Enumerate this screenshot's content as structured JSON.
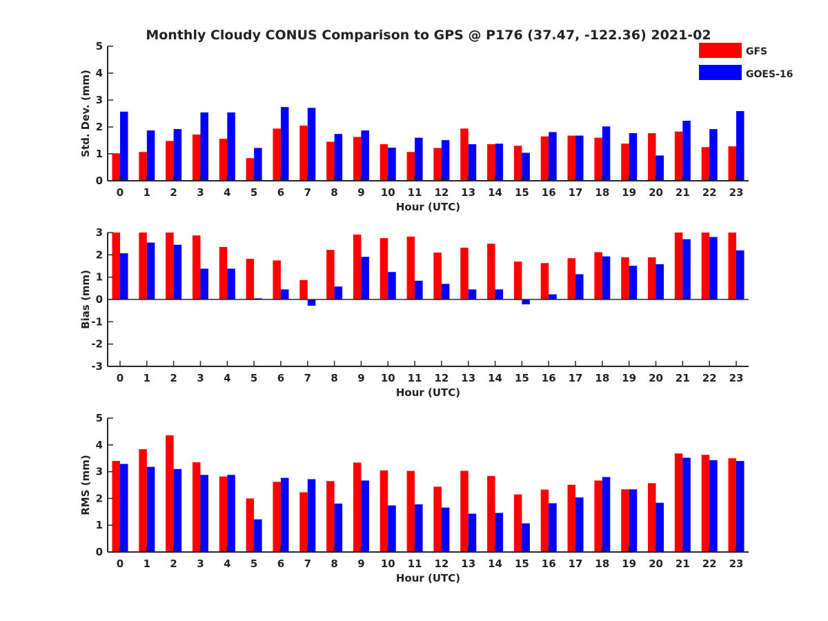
{
  "title": "Monthly Cloudy CONUS Comparison to GPS @ P176 (37.47, -122.36) 2021-02",
  "legend": {
    "placement": "top-right",
    "items": [
      {
        "name": "GFS",
        "color": "#ff0000"
      },
      {
        "name": "GOES-16",
        "color": "#0000ff"
      }
    ]
  },
  "chart_data": [
    {
      "type": "bar",
      "xlabel": "Hour (UTC)",
      "ylabel": "Std. Dev. (mm)",
      "ylim": [
        0,
        5
      ],
      "yticks": [
        0,
        1,
        2,
        3,
        4,
        5
      ],
      "categories": [
        "0",
        "1",
        "2",
        "3",
        "4",
        "5",
        "6",
        "7",
        "8",
        "9",
        "10",
        "11",
        "12",
        "13",
        "14",
        "15",
        "16",
        "17",
        "18",
        "19",
        "20",
        "21",
        "22",
        "23"
      ],
      "series": [
        {
          "name": "GFS",
          "color": "#ff0000",
          "values": [
            1.02,
            1.07,
            1.48,
            1.72,
            1.56,
            0.84,
            1.94,
            2.05,
            1.45,
            1.63,
            1.36,
            1.07,
            1.22,
            1.94,
            1.36,
            1.3,
            1.65,
            1.68,
            1.6,
            1.38,
            1.77,
            1.83,
            1.25,
            1.28
          ]
        },
        {
          "name": "GOES-16",
          "color": "#0000ff",
          "values": [
            2.57,
            1.87,
            1.92,
            2.54,
            2.54,
            1.22,
            2.74,
            2.71,
            1.74,
            1.87,
            1.23,
            1.6,
            1.51,
            1.36,
            1.38,
            1.04,
            1.81,
            1.68,
            2.02,
            1.77,
            0.94,
            2.23,
            1.92,
            2.59
          ]
        }
      ]
    },
    {
      "type": "bar",
      "xlabel": "Hour (UTC)",
      "ylabel": "Bias (mm)",
      "ylim": [
        -3,
        3
      ],
      "yticks": [
        -3,
        -2,
        -1,
        0,
        1,
        2,
        3
      ],
      "categories": [
        "0",
        "1",
        "2",
        "3",
        "4",
        "5",
        "6",
        "7",
        "8",
        "9",
        "10",
        "11",
        "12",
        "13",
        "14",
        "15",
        "16",
        "17",
        "18",
        "19",
        "20",
        "21",
        "22",
        "23"
      ],
      "series": [
        {
          "name": "GFS",
          "color": "#ff0000",
          "values": [
            3.0,
            3.0,
            3.0,
            2.87,
            2.35,
            1.82,
            1.75,
            0.87,
            2.22,
            2.91,
            2.75,
            2.82,
            2.1,
            2.32,
            2.5,
            1.7,
            1.63,
            1.85,
            2.12,
            1.89,
            1.89,
            3.0,
            3.0,
            3.0
          ]
        },
        {
          "name": "GOES-16",
          "color": "#0000ff",
          "values": [
            2.07,
            2.55,
            2.45,
            1.38,
            1.38,
            0.05,
            0.45,
            -0.28,
            0.58,
            1.91,
            1.23,
            0.84,
            0.7,
            0.45,
            0.45,
            -0.22,
            0.23,
            1.13,
            1.93,
            1.51,
            1.58,
            2.7,
            2.8,
            2.2
          ]
        }
      ]
    },
    {
      "type": "bar",
      "xlabel": "Hour (UTC)",
      "ylabel": "RMS (mm)",
      "ylim": [
        0,
        5
      ],
      "yticks": [
        0,
        1,
        2,
        3,
        4,
        5
      ],
      "categories": [
        "0",
        "1",
        "2",
        "3",
        "4",
        "5",
        "6",
        "7",
        "8",
        "9",
        "10",
        "11",
        "12",
        "13",
        "14",
        "15",
        "16",
        "17",
        "18",
        "19",
        "20",
        "21",
        "22",
        "23"
      ],
      "series": [
        {
          "name": "GFS",
          "color": "#ff0000",
          "values": [
            3.4,
            3.84,
            4.36,
            3.35,
            2.82,
            2.0,
            2.62,
            2.23,
            2.65,
            3.34,
            3.05,
            3.03,
            2.44,
            3.03,
            2.84,
            2.15,
            2.33,
            2.51,
            2.67,
            2.34,
            2.57,
            3.68,
            3.63,
            3.5
          ]
        },
        {
          "name": "GOES-16",
          "color": "#0000ff",
          "values": [
            3.29,
            3.18,
            3.1,
            2.88,
            2.88,
            1.22,
            2.77,
            2.72,
            1.81,
            2.67,
            1.74,
            1.78,
            1.66,
            1.43,
            1.46,
            1.07,
            1.82,
            2.04,
            2.8,
            2.34,
            1.84,
            3.52,
            3.43,
            3.4
          ]
        }
      ]
    }
  ]
}
